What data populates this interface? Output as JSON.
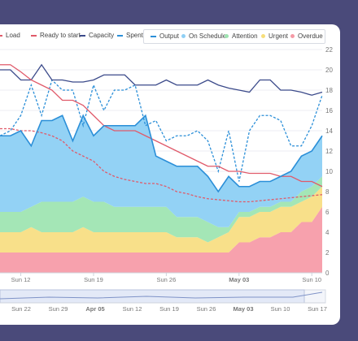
{
  "legend_top": [
    {
      "name": "Load",
      "color": "#e05a6a",
      "style": "line"
    },
    {
      "name": "Ready to start",
      "color": "#e05a6a",
      "style": "dashed"
    },
    {
      "name": "Capacity",
      "color": "#3b4a8a",
      "style": "line"
    },
    {
      "name": "Spent",
      "color": "#2b8fd8",
      "style": "dashed"
    }
  ],
  "legend_box": [
    {
      "name": "Output",
      "color": "#2b8fd8",
      "style": "line"
    },
    {
      "name": "On Schedule",
      "color": "#8fd0f5",
      "style": "dot"
    },
    {
      "name": "Attention",
      "color": "#9de3b0",
      "style": "dot"
    },
    {
      "name": "Urgent",
      "color": "#f7de7a",
      "style": "dot"
    },
    {
      "name": "Overdue",
      "color": "#f59aa6",
      "style": "dot"
    }
  ],
  "chart_data": {
    "type": "area",
    "x_tick_labels": [
      "Sun 12",
      "Sun 19",
      "Sun 26",
      "May 03",
      "Sun 10"
    ],
    "y_ticks": [
      0,
      2,
      4,
      6,
      8,
      10,
      12,
      14,
      16,
      18,
      20,
      22
    ],
    "ylim": [
      0,
      22
    ],
    "points": 32,
    "series": [
      {
        "name": "Overdue",
        "kind": "stack",
        "color": "#f7a1ad",
        "values": [
          2,
          2,
          2,
          2,
          2,
          2,
          2,
          2,
          2,
          2,
          2,
          2,
          2,
          2,
          2,
          2,
          2,
          2,
          2,
          2,
          2,
          2,
          2,
          3,
          3,
          3.5,
          3.5,
          4,
          4,
          5,
          5,
          6.5
        ]
      },
      {
        "name": "Urgent",
        "kind": "stack",
        "color": "#f8e08a",
        "values": [
          2,
          2,
          2,
          2.5,
          2,
          2,
          2,
          2,
          2.5,
          2,
          2,
          2,
          2,
          2,
          2,
          2,
          2,
          1.5,
          1.5,
          1.5,
          1,
          1.5,
          2,
          2.5,
          2.5,
          2.5,
          2.5,
          2.5,
          2.5,
          2,
          2.5,
          2
        ]
      },
      {
        "name": "Attention",
        "kind": "stack",
        "color": "#a4e6b6",
        "values": [
          2,
          2,
          2,
          2,
          3,
          3,
          3,
          3,
          3,
          3,
          3,
          2.5,
          2.5,
          2.5,
          2.5,
          2.5,
          2.5,
          2,
          2,
          2,
          2,
          1,
          0.5,
          0.5,
          0.5,
          0.5,
          0.5,
          0.5,
          0.5,
          1,
          1,
          1
        ]
      },
      {
        "name": "On Schedule",
        "kind": "stack",
        "color": "#93d2f5",
        "values": [
          7.5,
          7.5,
          8,
          6,
          8,
          8,
          8.5,
          6,
          8,
          6.5,
          7.5,
          8,
          8,
          8,
          9,
          5,
          4.5,
          5,
          5,
          5,
          4.5,
          3.5,
          5,
          2.5,
          2.5,
          2.5,
          2.5,
          2.5,
          3,
          3.5,
          3.5,
          4
        ]
      },
      {
        "name": "Spent",
        "kind": "line",
        "color": "#2b8fd8",
        "dash": true,
        "values": [
          13.5,
          14,
          15.5,
          18.5,
          15.5,
          19,
          18,
          18,
          14.5,
          18.5,
          16,
          18,
          18,
          18.5,
          14.5,
          15,
          13,
          13.5,
          13.5,
          14,
          13,
          10,
          14,
          9,
          14,
          15.5,
          15.5,
          15,
          12.5,
          12.5,
          14.5,
          17.5
        ]
      },
      {
        "name": "Capacity",
        "kind": "line",
        "color": "#3b4a8a",
        "dash": false,
        "values": [
          20,
          20,
          19,
          19,
          20.5,
          19,
          19,
          18.8,
          18.8,
          19,
          19.5,
          19.5,
          19.5,
          18.5,
          18.5,
          18.5,
          19,
          18.5,
          18.5,
          18.5,
          19,
          18.5,
          18.2,
          18,
          17.8,
          19,
          19,
          18,
          18,
          17.8,
          17.5,
          17.8
        ]
      },
      {
        "name": "Load",
        "kind": "line",
        "color": "#e05a6a",
        "dash": false,
        "values": [
          20.5,
          20.5,
          19.8,
          19,
          18.5,
          18,
          17,
          17,
          16.5,
          15.5,
          14.5,
          14,
          14,
          14,
          13.5,
          13,
          12.5,
          12,
          11.5,
          11,
          10.5,
          10.5,
          10,
          10,
          9.8,
          9.8,
          9.8,
          9.5,
          9.5,
          9,
          9,
          8.5
        ]
      },
      {
        "name": "Ready to start",
        "kind": "line",
        "color": "#e05a6a",
        "dash": true,
        "values": [
          14.2,
          14.2,
          14,
          14,
          13.8,
          13.5,
          13,
          12,
          11.5,
          11,
          10,
          9.5,
          9.2,
          9,
          8.8,
          8.8,
          8.5,
          8,
          7.8,
          7.5,
          7.3,
          7.2,
          7.1,
          7,
          7,
          7.1,
          7.2,
          7.3,
          7.4,
          7.5,
          7.6,
          7.7
        ]
      },
      {
        "name": "Output",
        "kind": "line",
        "color": "#2b8fd8",
        "dash": false,
        "stack_top": true
      }
    ]
  },
  "navigator": {
    "labels": [
      "Sun 22",
      "Sun 29",
      "Apr 05",
      "Sun 12",
      "Sun 19",
      "Sun 26",
      "May 03",
      "Sun 10",
      "Sun 17"
    ]
  }
}
